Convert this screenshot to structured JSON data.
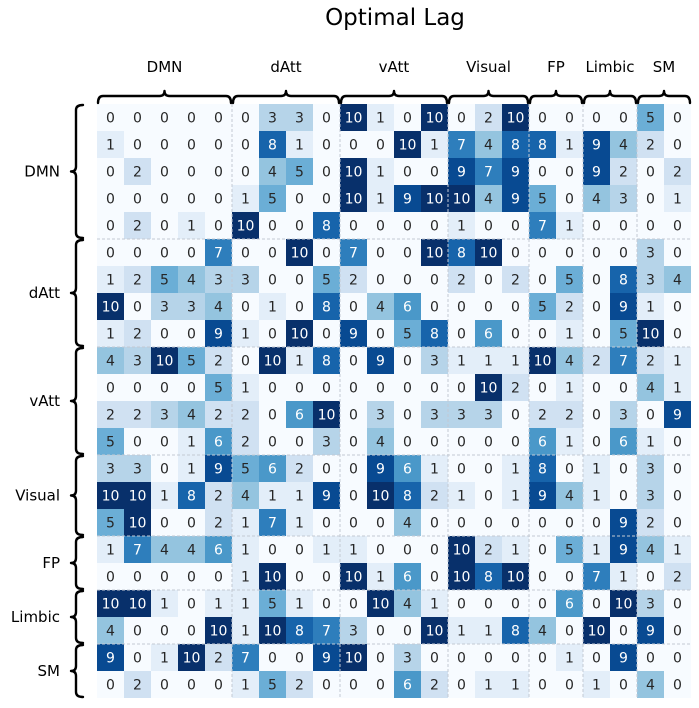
{
  "chart_data": {
    "type": "heatmap",
    "title": "Optimal Lag",
    "groups": [
      {
        "name": "DMN",
        "size": 5
      },
      {
        "name": "dAtt",
        "size": 4
      },
      {
        "name": "vAtt",
        "size": 4
      },
      {
        "name": "Visual",
        "size": 3
      },
      {
        "name": "FP",
        "size": 2
      },
      {
        "name": "Limbic",
        "size": 2
      },
      {
        "name": "SM",
        "size": 2
      }
    ],
    "colormap": "Blues",
    "vmin": 0,
    "vmax": 10,
    "values": [
      [
        0,
        0,
        0,
        0,
        0,
        0,
        3,
        3,
        0,
        10,
        1,
        0,
        10,
        0,
        2,
        10,
        0,
        0,
        0,
        0,
        5,
        0
      ],
      [
        1,
        0,
        0,
        0,
        0,
        0,
        8,
        1,
        0,
        0,
        0,
        10,
        1,
        7,
        4,
        8,
        8,
        1,
        9,
        4,
        2,
        0
      ],
      [
        0,
        2,
        0,
        0,
        0,
        0,
        4,
        5,
        0,
        10,
        1,
        0,
        0,
        9,
        7,
        9,
        0,
        0,
        9,
        2,
        0,
        2
      ],
      [
        0,
        0,
        0,
        0,
        0,
        1,
        5,
        0,
        0,
        10,
        1,
        9,
        10,
        10,
        4,
        9,
        5,
        0,
        4,
        3,
        0,
        1
      ],
      [
        0,
        2,
        0,
        1,
        0,
        10,
        0,
        0,
        8,
        0,
        0,
        0,
        0,
        1,
        0,
        0,
        7,
        1,
        0,
        0,
        0,
        0
      ],
      [
        0,
        0,
        0,
        0,
        7,
        0,
        0,
        10,
        0,
        7,
        0,
        0,
        10,
        8,
        10,
        0,
        0,
        0,
        0,
        0,
        3,
        0
      ],
      [
        1,
        2,
        5,
        4,
        3,
        3,
        0,
        0,
        5,
        2,
        0,
        0,
        0,
        2,
        0,
        2,
        0,
        5,
        0,
        8,
        3,
        4
      ],
      [
        10,
        0,
        3,
        3,
        4,
        0,
        1,
        0,
        8,
        0,
        4,
        6,
        0,
        0,
        0,
        0,
        5,
        2,
        0,
        9,
        1,
        0
      ],
      [
        1,
        2,
        0,
        0,
        9,
        1,
        0,
        10,
        0,
        9,
        0,
        5,
        8,
        0,
        6,
        0,
        0,
        1,
        0,
        5,
        10,
        0
      ],
      [
        4,
        3,
        10,
        5,
        2,
        0,
        10,
        1,
        8,
        0,
        9,
        0,
        3,
        1,
        1,
        1,
        10,
        4,
        2,
        7,
        2,
        1
      ],
      [
        0,
        0,
        0,
        0,
        5,
        1,
        0,
        0,
        0,
        0,
        0,
        0,
        0,
        0,
        10,
        2,
        0,
        1,
        0,
        0,
        4,
        1
      ],
      [
        2,
        2,
        3,
        4,
        2,
        2,
        0,
        6,
        10,
        0,
        3,
        0,
        3,
        3,
        3,
        0,
        2,
        2,
        0,
        3,
        0,
        9
      ],
      [
        5,
        0,
        0,
        1,
        6,
        2,
        0,
        0,
        3,
        0,
        4,
        0,
        0,
        0,
        0,
        0,
        6,
        1,
        0,
        6,
        1,
        0
      ],
      [
        3,
        3,
        0,
        1,
        9,
        5,
        6,
        2,
        0,
        0,
        9,
        6,
        1,
        0,
        0,
        1,
        8,
        0,
        1,
        0,
        3,
        0
      ],
      [
        10,
        10,
        1,
        8,
        2,
        4,
        1,
        1,
        9,
        0,
        10,
        8,
        2,
        1,
        0,
        1,
        9,
        4,
        1,
        0,
        3,
        0
      ],
      [
        5,
        10,
        0,
        0,
        2,
        1,
        7,
        1,
        0,
        0,
        0,
        4,
        0,
        0,
        0,
        0,
        0,
        0,
        0,
        9,
        2,
        0
      ],
      [
        1,
        7,
        4,
        4,
        6,
        1,
        0,
        0,
        1,
        1,
        0,
        0,
        0,
        10,
        2,
        1,
        0,
        5,
        1,
        9,
        4,
        1
      ],
      [
        0,
        0,
        0,
        0,
        0,
        1,
        10,
        0,
        0,
        10,
        1,
        6,
        0,
        10,
        8,
        10,
        0,
        0,
        7,
        1,
        0,
        2
      ],
      [
        10,
        10,
        1,
        0,
        1,
        1,
        5,
        1,
        0,
        0,
        10,
        4,
        1,
        0,
        0,
        0,
        0,
        6,
        0,
        10,
        3,
        0
      ],
      [
        4,
        0,
        0,
        0,
        10,
        1,
        10,
        8,
        7,
        3,
        0,
        0,
        10,
        1,
        1,
        8,
        4,
        0,
        10,
        0,
        9,
        0
      ],
      [
        9,
        0,
        1,
        10,
        2,
        7,
        0,
        0,
        9,
        10,
        0,
        3,
        0,
        0,
        0,
        0,
        0,
        1,
        0,
        9,
        0,
        0
      ],
      [
        0,
        2,
        0,
        0,
        0,
        1,
        5,
        2,
        0,
        0,
        0,
        6,
        2,
        0,
        1,
        1,
        0,
        0,
        1,
        0,
        4,
        0
      ]
    ]
  }
}
